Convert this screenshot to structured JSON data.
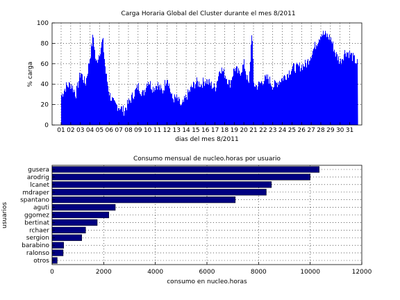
{
  "chart_data": [
    {
      "type": "area",
      "title": "Carga Horaria Global del Cluster durante el mes 8/2011",
      "xlabel": "dias del mes 8/2011",
      "ylabel": "% carga",
      "xtick_labels": [
        "01",
        "02",
        "03",
        "04",
        "05",
        "06",
        "07",
        "08",
        "09",
        "10",
        "11",
        "12",
        "13",
        "14",
        "15",
        "16",
        "17",
        "18",
        "19",
        "20",
        "21",
        "22",
        "23",
        "24",
        "25",
        "26",
        "27",
        "28",
        "29",
        "30",
        "31"
      ],
      "ylim": [
        0,
        100
      ],
      "yticks": [
        0,
        20,
        40,
        60,
        80,
        100
      ],
      "grid": "dotted",
      "color": "#0000ff",
      "x_days": [
        1,
        1.5,
        2,
        2.5,
        3,
        3.5,
        4,
        4.3,
        4.6,
        5,
        5.3,
        5.6,
        6,
        6.5,
        7,
        7.5,
        8,
        8.5,
        9,
        9.5,
        10,
        10.5,
        11,
        11.5,
        12,
        12.5,
        13,
        13.5,
        14,
        14.5,
        15,
        15.5,
        16,
        16.5,
        17,
        17.5,
        18,
        18.5,
        19,
        19.5,
        20,
        20.5,
        20.8,
        21,
        21.3,
        21.6,
        22,
        22.5,
        23,
        23.5,
        24,
        24.5,
        25,
        25.5,
        26,
        26.5,
        27,
        27.5,
        28,
        28.5,
        29,
        29.5,
        30,
        30.5,
        31,
        31.8
      ],
      "load_pct": [
        29,
        38,
        40,
        30,
        52,
        40,
        68,
        88,
        60,
        72,
        84,
        52,
        30,
        20,
        18,
        14,
        22,
        30,
        38,
        30,
        44,
        36,
        40,
        32,
        48,
        26,
        26,
        18,
        28,
        36,
        42,
        40,
        44,
        40,
        36,
        56,
        50,
        40,
        56,
        50,
        60,
        38,
        95,
        40,
        38,
        40,
        44,
        46,
        38,
        42,
        46,
        50,
        56,
        56,
        58,
        60,
        70,
        80,
        90,
        88,
        85,
        70,
        62,
        72,
        70,
        60
      ]
    },
    {
      "type": "bar",
      "orientation": "horizontal",
      "title": "Consumo mensual de nucleo.horas por usuario",
      "xlabel": "consumo en nucleo.horas",
      "ylabel": "usuarios",
      "categories": [
        "gusera",
        "arodrig",
        "lcanet",
        "mdraper",
        "spantano",
        "aguti",
        "ggomez",
        "bertinat",
        "rchaer",
        "sergion",
        "barabino",
        "ralonso",
        "otros"
      ],
      "values": [
        10350,
        10000,
        8500,
        8300,
        7100,
        2450,
        2200,
        1750,
        1300,
        1150,
        450,
        430,
        200
      ],
      "xlim": [
        0,
        12000
      ],
      "xticks": [
        0,
        2000,
        4000,
        6000,
        8000,
        10000,
        12000
      ],
      "grid": "dotted",
      "color": "#000080"
    }
  ]
}
